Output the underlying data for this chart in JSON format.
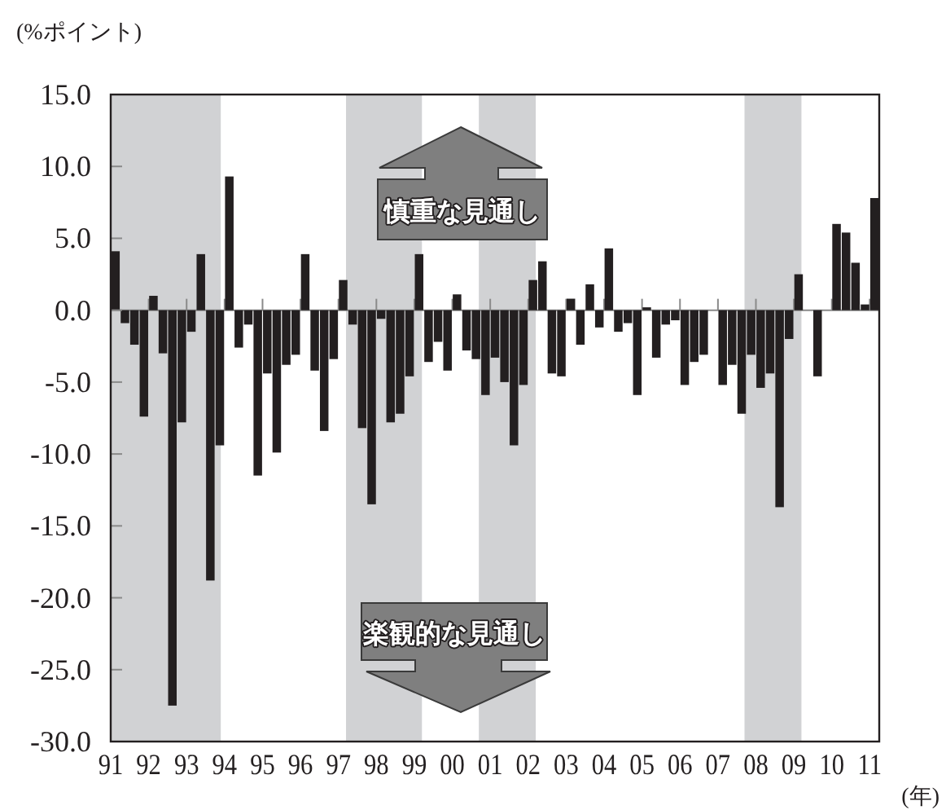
{
  "chart_data": {
    "type": "bar",
    "xlabel": "(年)",
    "ylabel": "(%ポイント)",
    "annotations": [
      "慎重な見通し",
      "楽観的な見通し"
    ],
    "color": "#231f20",
    "x": [
      1991.125,
      1991.375,
      1991.625,
      1991.875,
      1992.125,
      1992.375,
      1992.625,
      1992.875,
      1993.125,
      1993.375,
      1993.625,
      1993.875,
      1994.125,
      1994.375,
      1994.625,
      1994.875,
      1995.125,
      1995.375,
      1995.625,
      1995.875,
      1996.125,
      1996.375,
      1996.625,
      1996.875,
      1997.125,
      1997.375,
      1997.625,
      1997.875,
      1998.125,
      1998.375,
      1998.625,
      1998.875,
      1999.125,
      1999.375,
      1999.625,
      1999.875,
      2000.125,
      2000.375,
      2000.625,
      2000.875,
      2001.125,
      2001.375,
      2001.625,
      2001.875,
      2002.125,
      2002.375,
      2002.625,
      2002.875,
      2003.125,
      2003.375,
      2003.625,
      2003.875,
      2004.125,
      2004.375,
      2004.625,
      2004.875,
      2005.125,
      2005.375,
      2005.625,
      2005.875,
      2006.125,
      2006.375,
      2006.625,
      2006.875,
      2007.125,
      2007.375,
      2007.625,
      2007.875,
      2008.125,
      2008.375,
      2008.625,
      2008.875,
      2009.125,
      2009.375,
      2009.625,
      2009.875,
      2010.125,
      2010.375,
      2010.625,
      2010.875,
      2011.125
    ],
    "values": [
      4.1,
      -0.9,
      -2.4,
      -7.4,
      1.0,
      -3.0,
      -27.5,
      -7.8,
      -1.5,
      3.9,
      -18.8,
      -9.4,
      9.3,
      -2.6,
      -1.0,
      -11.5,
      -4.4,
      -9.9,
      -3.8,
      -3.1,
      3.9,
      -4.2,
      -8.4,
      -3.4,
      2.1,
      -1.0,
      -8.2,
      -13.5,
      -0.6,
      -7.8,
      -7.2,
      -4.6,
      3.9,
      -3.6,
      -2.2,
      -4.2,
      1.1,
      -2.8,
      -3.4,
      -5.9,
      -3.3,
      -5.0,
      -9.4,
      -5.2,
      2.1,
      3.4,
      -4.4,
      -4.6,
      0.8,
      -2.4,
      1.8,
      -1.2,
      4.3,
      -1.5,
      -0.9,
      -5.9,
      0.2,
      -3.3,
      -1.0,
      -0.7,
      -5.2,
      -3.6,
      -3.1,
      0,
      -5.2,
      -3.8,
      -7.2,
      -3.1,
      -5.4,
      -4.4,
      -13.7,
      -2.0,
      2.5,
      0,
      -4.6,
      0,
      6.0,
      5.4,
      3.3,
      0.4,
      7.8
    ],
    "xlim": [
      1991,
      2011.25
    ],
    "ylim": [
      -30,
      15
    ],
    "xticks": [
      {
        "value": 1991,
        "label": "91"
      },
      {
        "value": 1992,
        "label": "92"
      },
      {
        "value": 1993,
        "label": "93"
      },
      {
        "value": 1994,
        "label": "94"
      },
      {
        "value": 1995,
        "label": "95"
      },
      {
        "value": 1996,
        "label": "96"
      },
      {
        "value": 1997,
        "label": "97"
      },
      {
        "value": 1998,
        "label": "98"
      },
      {
        "value": 1999,
        "label": "99"
      },
      {
        "value": 2000,
        "label": "00"
      },
      {
        "value": 2001,
        "label": "01"
      },
      {
        "value": 2002,
        "label": "02"
      },
      {
        "value": 2003,
        "label": "03"
      },
      {
        "value": 2004,
        "label": "04"
      },
      {
        "value": 2005,
        "label": "05"
      },
      {
        "value": 2006,
        "label": "06"
      },
      {
        "value": 2007,
        "label": "07"
      },
      {
        "value": 2008,
        "label": "08"
      },
      {
        "value": 2009,
        "label": "09"
      },
      {
        "value": 2010,
        "label": "10"
      },
      {
        "value": 2011,
        "label": "11"
      }
    ],
    "yticks": [
      {
        "value": 15,
        "label": "15.0"
      },
      {
        "value": 10,
        "label": "10.0"
      },
      {
        "value": 5,
        "label": "5.0"
      },
      {
        "value": 0,
        "label": "0.0"
      },
      {
        "value": -5,
        "label": "-5.0"
      },
      {
        "value": -10,
        "label": "-10.0"
      },
      {
        "value": -15,
        "label": "-15.0"
      },
      {
        "value": -20,
        "label": "-20.0"
      },
      {
        "value": -25,
        "label": "-25.0"
      },
      {
        "value": -30,
        "label": "-30.0"
      }
    ],
    "bands": [
      {
        "axis": "x",
        "from": 1991,
        "to": 1993.9,
        "color": "#d1d2d4"
      },
      {
        "axis": "x",
        "from": 1997.2,
        "to": 1999.2,
        "color": "#d1d2d4"
      },
      {
        "axis": "x",
        "from": 2000.7,
        "to": 2002.2,
        "color": "#d1d2d4"
      },
      {
        "axis": "x",
        "from": 2007.7,
        "to": 2009.2,
        "color": "#d1d2d4"
      }
    ]
  }
}
